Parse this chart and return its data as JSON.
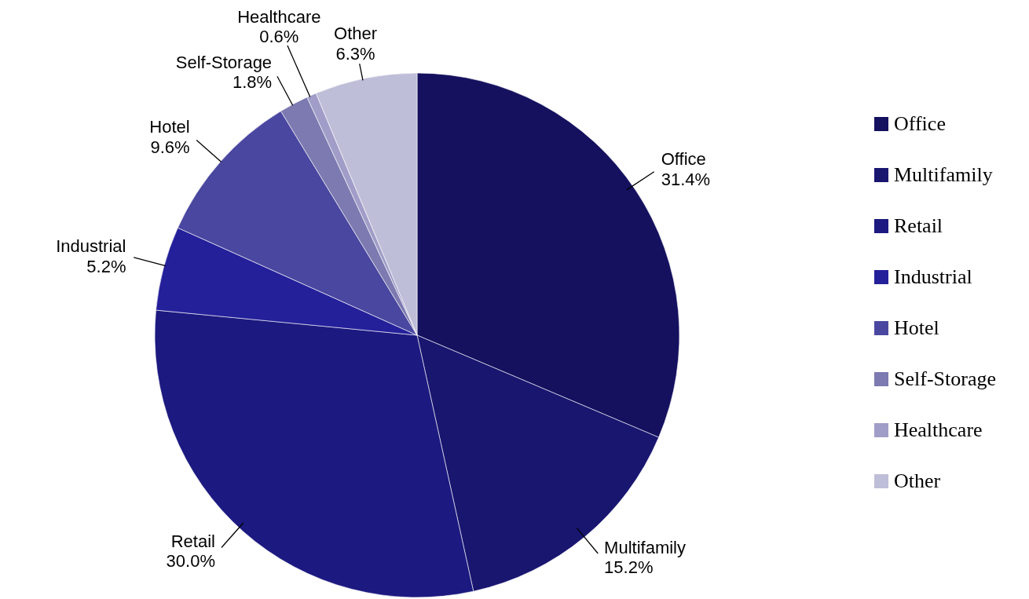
{
  "chart_data": {
    "type": "pie",
    "categories": [
      "Office",
      "Multifamily",
      "Retail",
      "Industrial",
      "Hotel",
      "Self-Storage",
      "Healthcare",
      "Other"
    ],
    "values": [
      31.4,
      15.2,
      30.0,
      5.2,
      9.6,
      1.8,
      0.6,
      6.3
    ],
    "value_labels": [
      "31.4%",
      "15.2%",
      "30.0%",
      "5.2%",
      "9.6%",
      "1.8%",
      "0.6%",
      "6.3%"
    ],
    "colors": [
      "#15115f",
      "#191670",
      "#1c1a80",
      "#24209a",
      "#4a47a0",
      "#7c7ab0",
      "#a09ec8",
      "#bfbed8"
    ],
    "legend": "right"
  }
}
